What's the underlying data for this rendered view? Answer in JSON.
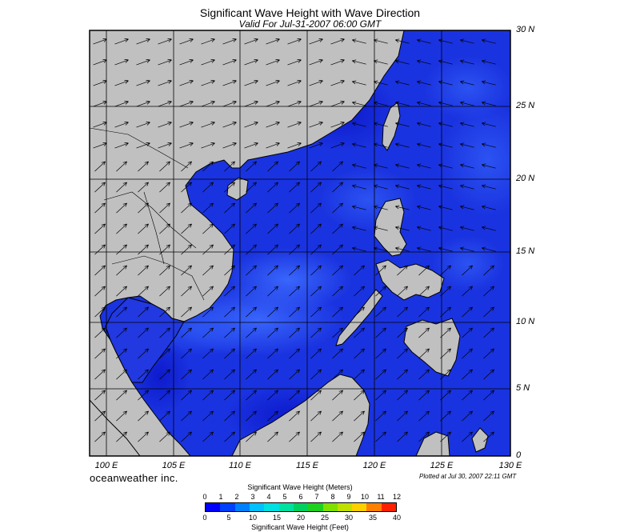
{
  "header": {
    "title": "Significant Wave Height with Wave Direction",
    "subtitle": "Valid For Jul-31-2007 06:00 GMT"
  },
  "map": {
    "lat_labels": [
      "30 N",
      "25 N",
      "20 N",
      "15 N",
      "10 N",
      "5 N",
      "0"
    ],
    "lon_labels": [
      "100 E",
      "105 E",
      "110 E",
      "115 E",
      "120 E",
      "125 E",
      "130 E"
    ],
    "land_color": "#c0c0c0",
    "sea_base_color": "#1a33e0"
  },
  "footer": {
    "brand": "oceanweather inc.",
    "plotted": "Plotted at Jul 30, 2007 22:11 GMT"
  },
  "scale": {
    "meters_title": "Significant Wave Height (Meters)",
    "meters_ticks": [
      "0",
      "1",
      "2",
      "3",
      "4",
      "5",
      "6",
      "7",
      "8",
      "9",
      "10",
      "11",
      "12"
    ],
    "feet_title": "Significant Wave Height (Feet)",
    "feet_ticks": [
      "0",
      "5",
      "10",
      "15",
      "20",
      "25",
      "30",
      "35",
      "40"
    ],
    "colors": [
      "#0000ff",
      "#0040ff",
      "#0080ff",
      "#00c0ff",
      "#00e0e0",
      "#00e0a0",
      "#00d060",
      "#20d020",
      "#80e000",
      "#c0e000",
      "#ffd000",
      "#ff8000",
      "#ff2000"
    ]
  }
}
